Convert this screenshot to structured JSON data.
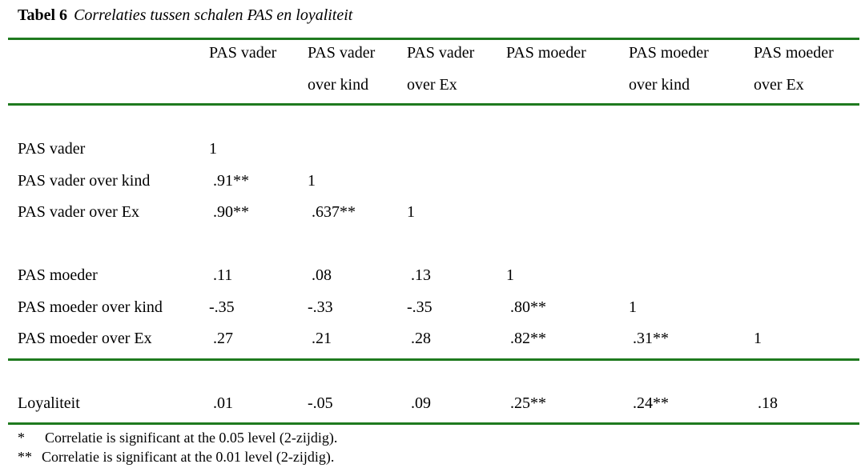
{
  "table": {
    "label": "Tabel  6",
    "caption": "Correlaties tussen schalen PAS en loyaliteit",
    "headers": [
      [
        "PAS vader",
        ""
      ],
      [
        "PAS vader",
        "over kind"
      ],
      [
        "PAS vader",
        "over Ex"
      ],
      [
        "PAS moeder",
        ""
      ],
      [
        "PAS moeder",
        "over kind"
      ],
      [
        "PAS moeder",
        "over Ex"
      ]
    ],
    "rows": [
      {
        "label": "PAS vader",
        "values": [
          "1",
          "",
          "",
          "",
          "",
          ""
        ]
      },
      {
        "label": "PAS vader over kind",
        "values": [
          ".91**",
          "1",
          "",
          "",
          "",
          ""
        ]
      },
      {
        "label": "PAS vader over Ex",
        "values": [
          ".90**",
          ".637**",
          "1",
          "",
          "",
          ""
        ]
      },
      {
        "label": "PAS moeder",
        "values": [
          ".11",
          ".08",
          ".13",
          "1",
          "",
          ""
        ]
      },
      {
        "label": "PAS moeder over kind",
        "values": [
          "-.35",
          "-.33",
          "-.35",
          ".80**",
          "1",
          ""
        ]
      },
      {
        "label": "PAS moeder over Ex",
        "values": [
          ".27",
          ".21",
          ".28",
          ".82**",
          ".31**",
          "1"
        ]
      },
      {
        "label": "Loyaliteit",
        "values": [
          ".01",
          "-.05",
          ".09",
          ".25**",
          ".24**",
          ".18"
        ]
      }
    ],
    "footnotes": [
      {
        "mark": "*",
        "text": "Correlatie is significant at the 0.05 level (2-zijdig)."
      },
      {
        "mark": "**",
        "text": "Correlatie is significant at the 0.01 level (2-zijdig)."
      }
    ],
    "rule_color": "#1f7a1f"
  }
}
